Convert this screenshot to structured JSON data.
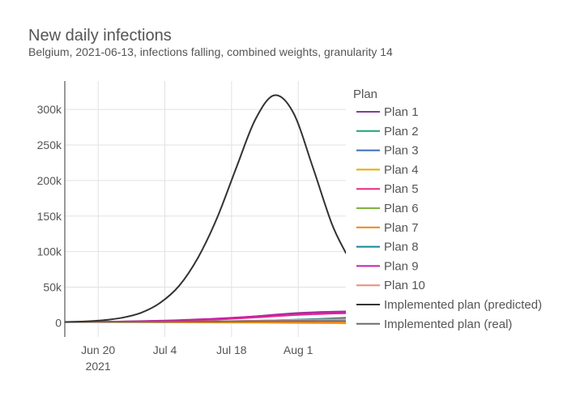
{
  "chart_data": {
    "type": "line",
    "title": "New daily infections",
    "subtitle": "Belgium, 2021-06-13, infections falling, combined weights, granularity 14",
    "xlabel": "",
    "ylabel": "",
    "x_range": [
      "2021-06-13",
      "2021-08-11"
    ],
    "y_range": [
      -20000,
      340000
    ],
    "y_ticks": [
      0,
      50000,
      100000,
      150000,
      200000,
      250000,
      300000
    ],
    "y_tick_labels": [
      "0",
      "50k",
      "100k",
      "150k",
      "200k",
      "250k",
      "300k"
    ],
    "x_ticks": [
      "2021-06-20",
      "2021-07-04",
      "2021-07-18",
      "2021-08-01"
    ],
    "x_tick_labels": [
      "Jun 20",
      "Jul 4",
      "Jul 18",
      "Aug 1"
    ],
    "x_tick_year": "2021",
    "grid": true,
    "legend": {
      "title": "Plan",
      "placement": "right"
    },
    "x": [
      "2021-06-13",
      "2021-06-17",
      "2021-06-21",
      "2021-06-25",
      "2021-06-29",
      "2021-07-03",
      "2021-07-07",
      "2021-07-11",
      "2021-07-15",
      "2021-07-19",
      "2021-07-23",
      "2021-07-27",
      "2021-07-31",
      "2021-08-04",
      "2021-08-08",
      "2021-08-11"
    ],
    "series": [
      {
        "name": "Plan 1",
        "color": "#7f3f98",
        "values": [
          1000,
          1200,
          1500,
          1800,
          2200,
          2700,
          3400,
          4300,
          5600,
          7200,
          9200,
          11500,
          13500,
          14800,
          15600,
          16000
        ]
      },
      {
        "name": "Plan 2",
        "color": "#1ba37a",
        "values": [
          1000,
          1000,
          1000,
          1000,
          1000,
          1000,
          1000,
          1000,
          1000,
          1000,
          1000,
          1000,
          1000,
          1000,
          1000,
          1000
        ]
      },
      {
        "name": "Plan 3",
        "color": "#3b6cb7",
        "values": [
          1000,
          950,
          900,
          850,
          800,
          750,
          700,
          700,
          650,
          650,
          600,
          600,
          600,
          550,
          550,
          550
        ]
      },
      {
        "name": "Plan 4",
        "color": "#e6ab02",
        "values": [
          1000,
          900,
          800,
          700,
          600,
          500,
          400,
          300,
          200,
          100,
          0,
          -200,
          -400,
          -600,
          -800,
          -1000
        ]
      },
      {
        "name": "Plan 5",
        "color": "#e7298a",
        "values": [
          1000,
          1100,
          1300,
          1500,
          1800,
          2200,
          2800,
          3500,
          4500,
          5800,
          7300,
          9000,
          10600,
          11800,
          12800,
          13300
        ]
      },
      {
        "name": "Plan 6",
        "color": "#7cb342",
        "values": [
          1000,
          1000,
          1000,
          1000,
          1000,
          1000,
          1000,
          1000,
          1000,
          1000,
          1000,
          1000,
          1000,
          1000,
          1000,
          1000
        ]
      },
      {
        "name": "Plan 7",
        "color": "#f0821d",
        "values": [
          1000,
          980,
          960,
          940,
          920,
          900,
          880,
          860,
          840,
          820,
          800,
          780,
          760,
          740,
          720,
          700
        ]
      },
      {
        "name": "Plan 8",
        "color": "#12878f",
        "values": [
          1000,
          1000,
          1000,
          1100,
          1200,
          1300,
          1500,
          1700,
          2000,
          2400,
          2900,
          3500,
          4300,
          5200,
          6200,
          7000
        ]
      },
      {
        "name": "Plan 9",
        "color": "#c71fa5",
        "values": [
          1000,
          1200,
          1500,
          1900,
          2400,
          3000,
          3800,
          4800,
          6000,
          7400,
          9000,
          10800,
          12500,
          13700,
          14500,
          15000
        ]
      },
      {
        "name": "Plan 10",
        "color": "#f08a78",
        "values": [
          1000,
          1000,
          1000,
          1100,
          1200,
          1300,
          1500,
          1800,
          2100,
          2500,
          3000,
          3500,
          4000,
          4400,
          4700,
          4900
        ]
      },
      {
        "name": "Implemented plan (predicted)",
        "color": "#333333",
        "values": [
          1000,
          1800,
          3500,
          7000,
          14000,
          28000,
          52000,
          92000,
          148000,
          218000,
          286000,
          320000,
          295000,
          220000,
          140000,
          98000
        ]
      },
      {
        "name": "Implemented plan (real)",
        "color": "#6b6b6b",
        "values": [
          1000,
          1200,
          1400,
          1500,
          1600,
          1700,
          1800,
          1900,
          2000,
          2100,
          2200,
          2300,
          2400,
          2500,
          2600,
          2700
        ]
      }
    ]
  }
}
